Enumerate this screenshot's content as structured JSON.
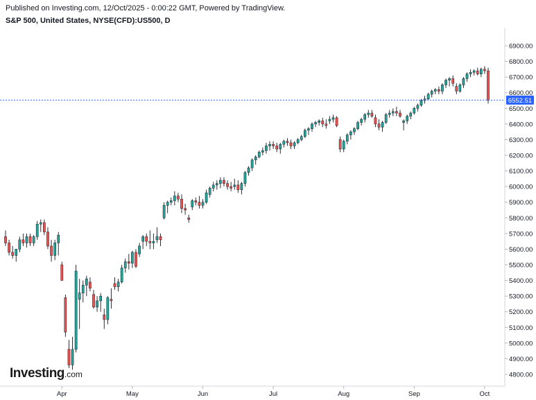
{
  "header": {
    "published": "Published on Investing.com, 12/Oct/2025 - 0:00:22 GMT, Powered by TradingView.",
    "symbol": "S&P 500, United States, NYSE(CFD):US500, D"
  },
  "logo": {
    "main": "Investing",
    "domain": ".com"
  },
  "colors": {
    "up": "#26a69a",
    "down": "#ef5350",
    "price_line": "#2962ff",
    "price_label_bg": "#2962ff",
    "axis_text": "#131722"
  },
  "chart_data": {
    "type": "candlestick",
    "title": "S&P 500, United States, NYSE(CFD):US500, D",
    "ylim": [
      4720,
      7020
    ],
    "y_ticks": [
      4800,
      4900,
      5000,
      5100,
      5200,
      5300,
      5400,
      5500,
      5600,
      5700,
      5800,
      5900,
      6000,
      6100,
      6200,
      6300,
      6400,
      6500,
      6600,
      6700,
      6800,
      6900
    ],
    "x_ticks": [
      {
        "label": "Apr",
        "index": 16
      },
      {
        "label": "May",
        "index": 36
      },
      {
        "label": "Jun",
        "index": 56
      },
      {
        "label": "Jul",
        "index": 76
      },
      {
        "label": "Aug",
        "index": 96
      },
      {
        "label": "Sep",
        "index": 116
      },
      {
        "label": "Oct",
        "index": 136
      }
    ],
    "last_price": 6552.51,
    "last_price_label": "6552.51",
    "grid": false,
    "ohlc": [
      [
        5680,
        5720,
        5620,
        5640
      ],
      [
        5640,
        5660,
        5560,
        5580
      ],
      [
        5580,
        5620,
        5540,
        5560
      ],
      [
        5560,
        5600,
        5520,
        5600
      ],
      [
        5600,
        5680,
        5580,
        5660
      ],
      [
        5660,
        5700,
        5620,
        5640
      ],
      [
        5640,
        5700,
        5610,
        5680
      ],
      [
        5680,
        5700,
        5620,
        5640
      ],
      [
        5640,
        5690,
        5620,
        5680
      ],
      [
        5680,
        5780,
        5660,
        5760
      ],
      [
        5760,
        5790,
        5710,
        5770
      ],
      [
        5770,
        5790,
        5690,
        5710
      ],
      [
        5710,
        5740,
        5600,
        5620
      ],
      [
        5620,
        5660,
        5520,
        5560
      ],
      [
        5560,
        5660,
        5530,
        5640
      ],
      [
        5640,
        5710,
        5560,
        5690
      ],
      [
        5500,
        5520,
        5410,
        5400
      ],
      [
        5290,
        5310,
        5040,
        5070
      ],
      [
        4960,
        5020,
        4840,
        4860
      ],
      [
        4860,
        5040,
        4830,
        4960
      ],
      [
        4960,
        5500,
        4940,
        5460
      ],
      [
        5280,
        5410,
        5090,
        5320
      ],
      [
        5320,
        5400,
        5260,
        5370
      ],
      [
        5370,
        5430,
        5300,
        5410
      ],
      [
        5390,
        5420,
        5330,
        5350
      ],
      [
        5310,
        5340,
        5220,
        5230
      ],
      [
        5230,
        5300,
        5200,
        5270
      ],
      [
        5270,
        5320,
        5200,
        5300
      ],
      [
        5180,
        5220,
        5090,
        5150
      ],
      [
        5150,
        5300,
        5120,
        5290
      ],
      [
        5280,
        5350,
        5220,
        5270
      ],
      [
        5380,
        5420,
        5340,
        5360
      ],
      [
        5360,
        5410,
        5330,
        5390
      ],
      [
        5390,
        5500,
        5380,
        5480
      ],
      [
        5480,
        5540,
        5450,
        5520
      ],
      [
        5520,
        5570,
        5470,
        5510
      ],
      [
        5510,
        5590,
        5480,
        5580
      ],
      [
        5580,
        5600,
        5480,
        5490
      ],
      [
        5570,
        5640,
        5550,
        5620
      ],
      [
        5650,
        5690,
        5600,
        5680
      ],
      [
        5680,
        5700,
        5620,
        5650
      ],
      [
        5650,
        5720,
        5600,
        5640
      ],
      [
        5640,
        5700,
        5600,
        5650
      ],
      [
        5660,
        5740,
        5640,
        5680
      ],
      [
        5680,
        5700,
        5620,
        5660
      ],
      [
        5800,
        5900,
        5790,
        5880
      ],
      [
        5880,
        5910,
        5830,
        5900
      ],
      [
        5900,
        5930,
        5880,
        5910
      ],
      [
        5910,
        5970,
        5880,
        5940
      ],
      [
        5940,
        5960,
        5900,
        5920
      ],
      [
        5920,
        5950,
        5830,
        5860
      ],
      [
        5860,
        5890,
        5820,
        5850
      ],
      [
        5800,
        5820,
        5770,
        5790
      ],
      [
        5870,
        5920,
        5850,
        5910
      ],
      [
        5910,
        5930,
        5880,
        5900
      ],
      [
        5900,
        5940,
        5860,
        5880
      ],
      [
        5880,
        5920,
        5860,
        5900
      ],
      [
        5900,
        5980,
        5890,
        5960
      ],
      [
        5950,
        6000,
        5930,
        5990
      ],
      [
        5990,
        6030,
        5970,
        6010
      ],
      [
        6010,
        6040,
        5980,
        6020
      ],
      [
        6020,
        6060,
        5990,
        6040
      ],
      [
        6040,
        6060,
        6000,
        6020
      ],
      [
        6020,
        6040,
        5980,
        6000
      ],
      [
        6000,
        6030,
        5970,
        5990
      ],
      [
        6000,
        6050,
        5980,
        6010
      ],
      [
        6010,
        6040,
        5960,
        5980
      ],
      [
        5980,
        6030,
        5950,
        6020
      ],
      [
        6020,
        6100,
        6000,
        6090
      ],
      [
        6090,
        6130,
        6070,
        6120
      ],
      [
        6120,
        6180,
        6100,
        6170
      ],
      [
        6170,
        6200,
        6140,
        6190
      ],
      [
        6190,
        6230,
        6180,
        6220
      ],
      [
        6220,
        6250,
        6200,
        6230
      ],
      [
        6230,
        6280,
        6210,
        6260
      ],
      [
        6260,
        6290,
        6230,
        6270
      ],
      [
        6270,
        6290,
        6240,
        6260
      ],
      [
        6260,
        6280,
        6220,
        6240
      ],
      [
        6240,
        6280,
        6210,
        6270
      ],
      [
        6270,
        6300,
        6250,
        6290
      ],
      [
        6290,
        6310,
        6260,
        6280
      ],
      [
        6280,
        6300,
        6240,
        6260
      ],
      [
        6260,
        6290,
        6240,
        6280
      ],
      [
        6280,
        6310,
        6270,
        6300
      ],
      [
        6300,
        6330,
        6290,
        6320
      ],
      [
        6320,
        6370,
        6310,
        6360
      ],
      [
        6360,
        6380,
        6330,
        6370
      ],
      [
        6370,
        6410,
        6350,
        6400
      ],
      [
        6400,
        6420,
        6380,
        6410
      ],
      [
        6410,
        6430,
        6390,
        6420
      ],
      [
        6420,
        6440,
        6380,
        6400
      ],
      [
        6400,
        6430,
        6370,
        6390
      ],
      [
        6420,
        6450,
        6400,
        6430
      ],
      [
        6430,
        6460,
        6410,
        6440
      ],
      [
        6440,
        6450,
        6380,
        6390
      ],
      [
        6300,
        6320,
        6220,
        6240
      ],
      [
        6240,
        6300,
        6220,
        6290
      ],
      [
        6290,
        6340,
        6270,
        6330
      ],
      [
        6330,
        6360,
        6300,
        6350
      ],
      [
        6350,
        6380,
        6330,
        6370
      ],
      [
        6370,
        6420,
        6360,
        6410
      ],
      [
        6410,
        6440,
        6390,
        6430
      ],
      [
        6430,
        6470,
        6410,
        6460
      ],
      [
        6460,
        6490,
        6440,
        6470
      ],
      [
        6470,
        6490,
        6440,
        6450
      ],
      [
        6440,
        6460,
        6380,
        6400
      ],
      [
        6400,
        6430,
        6360,
        6380
      ],
      [
        6380,
        6420,
        6350,
        6410
      ],
      [
        6410,
        6470,
        6400,
        6460
      ],
      [
        6460,
        6490,
        6440,
        6470
      ],
      [
        6470,
        6500,
        6450,
        6480
      ],
      [
        6480,
        6510,
        6450,
        6470
      ],
      [
        6470,
        6490,
        6440,
        6450
      ],
      [
        6410,
        6430,
        6360,
        6420
      ],
      [
        6420,
        6460,
        6400,
        6450
      ],
      [
        6450,
        6480,
        6430,
        6470
      ],
      [
        6470,
        6510,
        6460,
        6500
      ],
      [
        6500,
        6530,
        6480,
        6520
      ],
      [
        6520,
        6560,
        6510,
        6550
      ],
      [
        6550,
        6580,
        6530,
        6560
      ],
      [
        6560,
        6600,
        6550,
        6590
      ],
      [
        6590,
        6620,
        6570,
        6610
      ],
      [
        6610,
        6630,
        6590,
        6620
      ],
      [
        6620,
        6640,
        6590,
        6610
      ],
      [
        6610,
        6660,
        6590,
        6650
      ],
      [
        6650,
        6690,
        6630,
        6680
      ],
      [
        6680,
        6700,
        6640,
        6690
      ],
      [
        6690,
        6710,
        6640,
        6660
      ],
      [
        6640,
        6660,
        6590,
        6610
      ],
      [
        6610,
        6660,
        6600,
        6650
      ],
      [
        6650,
        6700,
        6630,
        6690
      ],
      [
        6690,
        6730,
        6670,
        6720
      ],
      [
        6720,
        6750,
        6700,
        6730
      ],
      [
        6730,
        6750,
        6710,
        6740
      ],
      [
        6740,
        6760,
        6710,
        6720
      ],
      [
        6720,
        6760,
        6700,
        6750
      ],
      [
        6750,
        6770,
        6720,
        6740
      ],
      [
        6740,
        6760,
        6530,
        6552.51
      ]
    ]
  }
}
